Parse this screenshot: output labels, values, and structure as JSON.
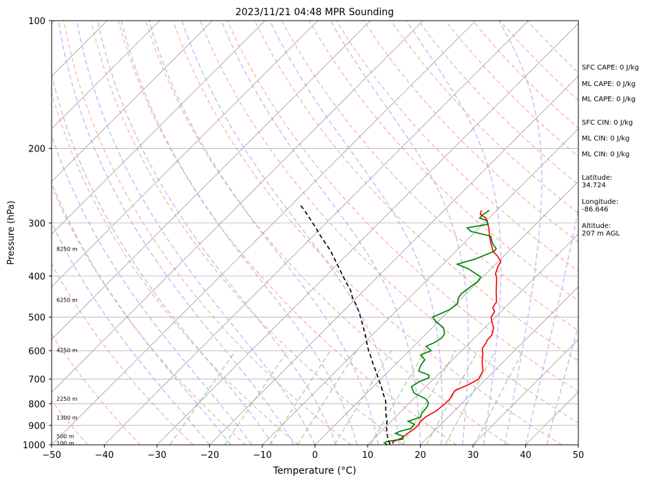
{
  "chart_data": {
    "type": "line",
    "title": "2023/11/21 04:48 MPR Sounding",
    "xlabel": "Temperature (°C)",
    "ylabel": "Pressure (hPa)",
    "xlim": [
      -50,
      50
    ],
    "ylim": [
      1000,
      100
    ],
    "y_scale": "log",
    "x_ticks": [
      "−50",
      "−40",
      "−30",
      "−20",
      "−10",
      "0",
      "10",
      "20",
      "30",
      "40",
      "50"
    ],
    "y_ticks": [
      1000,
      900,
      800,
      700,
      600,
      500,
      400,
      300,
      200,
      100
    ],
    "grid": true,
    "height_labels": [
      {
        "p": 345,
        "label": "8250 m"
      },
      {
        "p": 455,
        "label": "6250 m"
      },
      {
        "p": 598,
        "label": "4250 m"
      },
      {
        "p": 778,
        "label": "2250 m"
      },
      {
        "p": 862,
        "label": "1300 m"
      },
      {
        "p": 954,
        "label": "500 m"
      },
      {
        "p": 990,
        "label": "100 m"
      }
    ],
    "series": [
      {
        "role": "temperature",
        "color": "#ff0000",
        "points": [
          [
            14.7,
            995
          ],
          [
            14.2,
            985
          ],
          [
            15.2,
            962
          ],
          [
            15.4,
            940
          ],
          [
            15.8,
            920
          ],
          [
            15.9,
            900
          ],
          [
            15.6,
            880
          ],
          [
            15.7,
            860
          ],
          [
            16.6,
            830
          ],
          [
            16.9,
            800
          ],
          [
            16.9,
            780
          ],
          [
            16.5,
            760
          ],
          [
            16.3,
            745
          ],
          [
            17.8,
            720
          ],
          [
            18.6,
            700
          ],
          [
            18.1,
            680
          ],
          [
            17.9,
            670
          ],
          [
            16.7,
            650
          ],
          [
            15.6,
            630
          ],
          [
            14.6,
            610
          ],
          [
            13.9,
            600
          ],
          [
            13.4,
            590
          ],
          [
            13.2,
            578
          ],
          [
            12.8,
            565
          ],
          [
            12.7,
            550
          ],
          [
            11.7,
            530
          ],
          [
            10.0,
            510
          ],
          [
            9.2,
            500
          ],
          [
            8.8,
            485
          ],
          [
            7.7,
            475
          ],
          [
            7.3,
            460
          ],
          [
            5.7,
            440
          ],
          [
            4.5,
            425
          ],
          [
            2.9,
            405
          ],
          [
            1.8,
            395
          ],
          [
            0.9,
            380
          ],
          [
            0.5,
            370
          ],
          [
            -1.0,
            360
          ],
          [
            -2.9,
            350
          ],
          [
            -3.5,
            345
          ],
          [
            -4.7,
            336
          ],
          [
            -6.5,
            322
          ],
          [
            -7.9,
            310
          ],
          [
            -9.2,
            301
          ],
          [
            -10.6,
            292
          ],
          [
            -12.4,
            286
          ],
          [
            -12.9,
            280
          ]
        ]
      },
      {
        "role": "dewpoint",
        "color": "#008000",
        "points": [
          [
            13.7,
            998
          ],
          [
            12.8,
            990
          ],
          [
            13.0,
            982
          ],
          [
            15.6,
            970
          ],
          [
            15.2,
            955
          ],
          [
            13.1,
            940
          ],
          [
            13.5,
            930
          ],
          [
            15.1,
            915
          ],
          [
            15.0,
            895
          ],
          [
            13.2,
            880
          ],
          [
            14.8,
            860
          ],
          [
            14.3,
            845
          ],
          [
            14.2,
            830
          ],
          [
            14.0,
            810
          ],
          [
            13.5,
            795
          ],
          [
            12.4,
            780
          ],
          [
            9.0,
            755
          ],
          [
            7.3,
            730
          ],
          [
            7.8,
            710
          ],
          [
            8.9,
            695
          ],
          [
            8.4,
            685
          ],
          [
            5.7,
            670
          ],
          [
            5.0,
            650
          ],
          [
            4.7,
            630
          ],
          [
            3.0,
            614
          ],
          [
            4.2,
            600
          ],
          [
            2.4,
            586
          ],
          [
            3.2,
            575
          ],
          [
            3.8,
            560
          ],
          [
            3.5,
            547
          ],
          [
            2.2,
            530
          ],
          [
            -0.7,
            510
          ],
          [
            -1.9,
            500
          ],
          [
            -0.1,
            480
          ],
          [
            0.3,
            465
          ],
          [
            -0.6,
            452
          ],
          [
            -0.9,
            440
          ],
          [
            -0.5,
            425
          ],
          [
            -0.1,
            412
          ],
          [
            -0.4,
            402
          ],
          [
            -4.2,
            385
          ],
          [
            -7.3,
            375
          ],
          [
            -4.9,
            365
          ],
          [
            -2.7,
            350
          ],
          [
            -2.8,
            345
          ],
          [
            -4.4,
            336
          ],
          [
            -6.3,
            322
          ],
          [
            -10.9,
            314
          ],
          [
            -12.3,
            308
          ],
          [
            -9.0,
            302
          ],
          [
            -9.9,
            296
          ],
          [
            -11.8,
            292
          ],
          [
            -11.8,
            286
          ],
          [
            -11.4,
            280
          ]
        ]
      },
      {
        "role": "parcel",
        "color": "#000000",
        "style": "dashed",
        "points": [
          [
            14.2,
            998
          ],
          [
            12.8,
            970
          ],
          [
            11.5,
            940
          ],
          [
            10.3,
            910
          ],
          [
            9.2,
            880
          ],
          [
            7.8,
            850
          ],
          [
            6.5,
            820
          ],
          [
            5.2,
            790
          ],
          [
            3.4,
            760
          ],
          [
            1.6,
            730
          ],
          [
            -0.4,
            700
          ],
          [
            -2.1,
            675
          ],
          [
            -4.3,
            645
          ],
          [
            -6.1,
            620
          ],
          [
            -7.7,
            600
          ],
          [
            -9.5,
            575
          ],
          [
            -11.2,
            552
          ],
          [
            -13.0,
            530
          ],
          [
            -14.7,
            510
          ],
          [
            -16.7,
            488
          ],
          [
            -18.5,
            470
          ],
          [
            -20.8,
            450
          ],
          [
            -22.6,
            432
          ],
          [
            -24.8,
            415
          ],
          [
            -27.0,
            398
          ],
          [
            -29.4,
            380
          ],
          [
            -31.8,
            363
          ],
          [
            -34.0,
            348
          ],
          [
            -36.6,
            333
          ],
          [
            -38.9,
            320
          ],
          [
            -41.2,
            307
          ],
          [
            -43.5,
            295
          ],
          [
            -45.9,
            283
          ],
          [
            -48.3,
            272
          ]
        ]
      }
    ],
    "background_lines": {
      "isotherm_color": "#9e9e9e",
      "dry_adiabat_color": "#ff9a9a",
      "moist_adiabat_color": "#a9a0ff",
      "mixing_ratio_color": "#8fc98f"
    }
  },
  "side_panel": [
    "SFC CAPE: 0 J/kg",
    "ML CAPE: 0 J/kg",
    "ML CAPE: 0 J/kg",
    "SFC CIN: 0 J/kg",
    "ML CIN: 0 J/kg",
    "ML CIN: 0 J/kg",
    "Latitude:",
    "34.724",
    "Longitude:",
    "-86.646",
    "Altitude:",
    "207 m AGL"
  ]
}
